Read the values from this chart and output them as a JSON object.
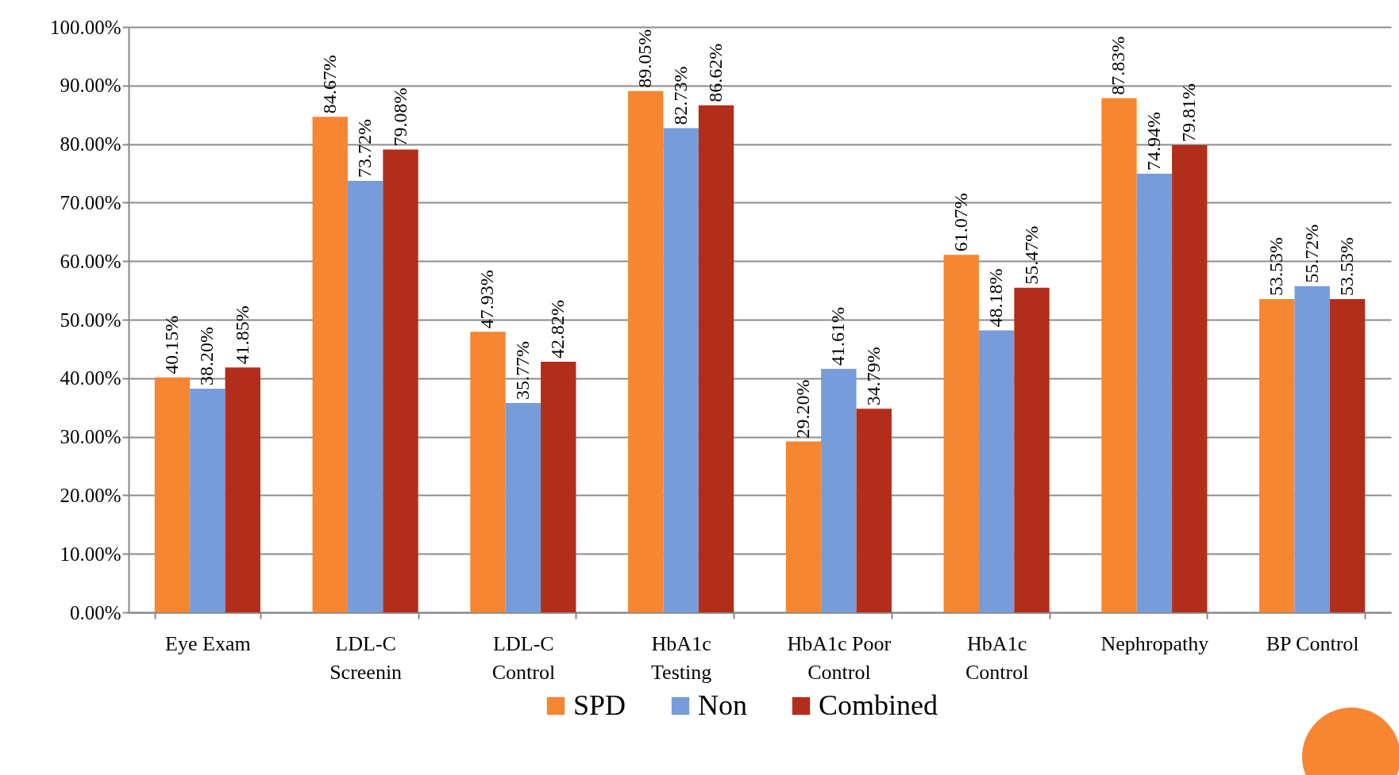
{
  "chart_data": {
    "type": "bar",
    "categories": [
      "Eye Exam",
      "LDL-C\nScreenin",
      "LDL-C\nControl",
      "HbA1c\nTesting",
      "HbA1c Poor\nControl",
      "HbA1c\nControl",
      "Nephropathy",
      "BP Control"
    ],
    "series": [
      {
        "name": "SPD",
        "color": "#f68631",
        "values": [
          40.15,
          84.67,
          47.93,
          89.05,
          29.2,
          61.07,
          87.83,
          53.53
        ],
        "value_labels": [
          "40.15%",
          "84.67%",
          "47.93%",
          "89.05%",
          "29.20%",
          "61.07%",
          "87.83%",
          "53.53%"
        ]
      },
      {
        "name": "Non",
        "color": "#779cda",
        "values": [
          38.2,
          73.72,
          35.77,
          82.73,
          41.61,
          48.18,
          74.94,
          55.72
        ],
        "value_labels": [
          "38.20%",
          "73.72%",
          "35.77%",
          "82.73%",
          "41.61%",
          "48.18%",
          "74.94%",
          "55.72%"
        ]
      },
      {
        "name": "Combined",
        "color": "#b22e1b",
        "values": [
          41.85,
          79.08,
          42.82,
          86.62,
          34.79,
          55.47,
          79.81,
          53.53
        ],
        "value_labels": [
          "41.85%",
          "79.08%",
          "42.82%",
          "86.62%",
          "34.79%",
          "55.47%",
          "79.81%",
          "53.53%"
        ]
      }
    ],
    "ylim": [
      0,
      100
    ],
    "yticks": [
      {
        "value": 0,
        "label": "0.00%"
      },
      {
        "value": 10,
        "label": "10.00%"
      },
      {
        "value": 20,
        "label": "20.00%"
      },
      {
        "value": 30,
        "label": "30.00%"
      },
      {
        "value": 40,
        "label": "40.00%"
      },
      {
        "value": 50,
        "label": "50.00%"
      },
      {
        "value": 60,
        "label": "60.00%"
      },
      {
        "value": 70,
        "label": "70.00%"
      },
      {
        "value": 80,
        "label": "80.00%"
      },
      {
        "value": 90,
        "label": "90.00%"
      },
      {
        "value": 100,
        "label": "100.00%"
      }
    ],
    "grid": "y",
    "legend": "bottom"
  }
}
